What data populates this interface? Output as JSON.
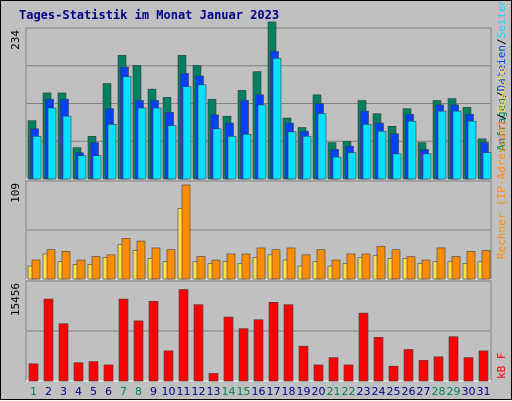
{
  "chart_data": {
    "type": "bar",
    "title": "Tages-Statistik im Monat Januar 2023",
    "categories": [
      "1",
      "2",
      "3",
      "4",
      "5",
      "6",
      "7",
      "8",
      "9",
      "10",
      "11",
      "12",
      "13",
      "14",
      "15",
      "16",
      "17",
      "18",
      "19",
      "20",
      "21",
      "22",
      "23",
      "24",
      "25",
      "26",
      "27",
      "28",
      "29",
      "30",
      "31"
    ],
    "weekend_days": [
      "1",
      "7",
      "8",
      "14",
      "15",
      "21",
      "22",
      "28",
      "29"
    ],
    "panels": [
      {
        "ymax_label": "234",
        "ymax": 234,
        "series": [
          {
            "name": "Anfragen",
            "color": "#008060",
            "values": [
              93,
              137,
              137,
              50,
              68,
              152,
              197,
              181,
              143,
              130,
              197,
              181,
              127,
              100,
              141,
              171,
              250,
              97,
              82,
              134,
              58,
              60,
              125,
              104,
              84,
              112,
              58,
              125,
              128,
              114,
              64
            ]
          },
          {
            "name": "Dateien",
            "color": "#0040ff",
            "values": [
              80,
              127,
              127,
              42,
              58,
              112,
              178,
              125,
              125,
              106,
              168,
              164,
              102,
              89,
              125,
              134,
              203,
              89,
              76,
              120,
              47,
              52,
              108,
              89,
              72,
              103,
              47,
              118,
              118,
              103,
              58
            ]
          },
          {
            "name": "Seiten",
            "color": "#00e0ff",
            "values": [
              68,
              113,
              100,
              37,
              37,
              87,
              163,
              113,
              113,
              85,
              147,
              150,
              80,
              68,
              71,
              118,
              192,
              75,
              68,
              104,
              35,
              42,
              87,
              76,
              40,
              92,
              40,
              108,
              108,
              92,
              42
            ]
          }
        ]
      },
      {
        "ymax_label": "109",
        "ymax": 109,
        "series": [
          {
            "name": "Besuche",
            "color": "#ffe040",
            "values": [
              15,
              29,
              20,
              17,
              17,
              25,
              40,
              33,
              24,
              20,
              82,
              20,
              18,
              20,
              18,
              25,
              28,
              22,
              15,
              20,
              15,
              18,
              25,
              27,
              24,
              24,
              18,
              20,
              20,
              18,
              20
            ]
          },
          {
            "name": "Rechner",
            "color": "#ff8c00",
            "values": [
              22,
              34,
              32,
              22,
              26,
              28,
              47,
              44,
              36,
              34,
              109,
              26,
              22,
              29,
              29,
              36,
              34,
              36,
              28,
              34,
              22,
              29,
              29,
              38,
              34,
              26,
              22,
              36,
              26,
              32,
              33
            ]
          }
        ]
      },
      {
        "ymax_label": "15456",
        "ymax": 15456,
        "series": [
          {
            "name": "kB F",
            "color": "#ff0000",
            "values": [
              2770,
              13190,
              9240,
              2950,
              3130,
              2590,
              13190,
              9690,
              12830,
              4850,
              14730,
              12300,
              1210,
              10300,
              8430,
              9870,
              12670,
              12300,
              5610,
              2590,
              3770,
              2590,
              10930,
              7030,
              2380,
              5070,
              3330,
              3900,
              7130,
              3770,
              4850
            ]
          }
        ]
      }
    ],
    "side_labels": [
      {
        "text": "Anfragen",
        "color": "#008060"
      },
      {
        "text": "/",
        "color": "#000000"
      },
      {
        "text": "Dateien",
        "color": "#0040ff"
      },
      {
        "text": "/",
        "color": "#000000"
      },
      {
        "text": "Seiten",
        "color": "#00e0ff"
      },
      {
        "text": "/",
        "color": "#000000"
      },
      {
        "text": "Besuche",
        "color": "#ffe040"
      },
      {
        "text": "/",
        "color": "#000000"
      },
      {
        "text": "Rechner (IP-Adressen)",
        "color": "#ff8c00"
      },
      {
        "text": "kB F",
        "color": "#ff0000"
      }
    ],
    "colors": {
      "background": "#c0c0c0",
      "weekday_label": "#00008b",
      "weekend_label": "#008060",
      "gridline": "#808080"
    }
  }
}
